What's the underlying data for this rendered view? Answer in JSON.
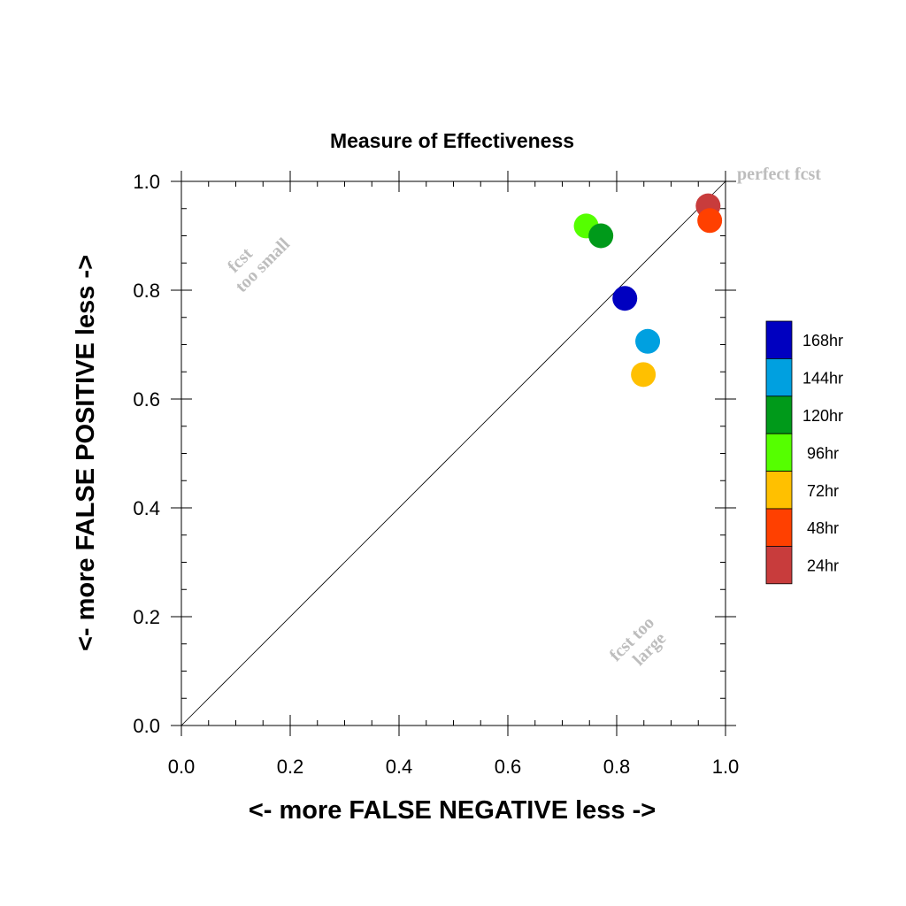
{
  "chart_data": {
    "type": "scatter",
    "title": "Measure of Effectiveness",
    "xlabel": "<- more   FALSE NEGATIVE   less ->",
    "ylabel": "<- more   FALSE POSITIVE   less ->",
    "xlim": [
      0.0,
      1.0
    ],
    "ylim": [
      0.0,
      1.0
    ],
    "x_ticks": [
      "0.0",
      "0.2",
      "0.4",
      "0.6",
      "0.8",
      "1.0"
    ],
    "y_ticks": [
      "0.0",
      "0.2",
      "0.4",
      "0.6",
      "0.8",
      "1.0"
    ],
    "grid": false,
    "diagonal_line": true,
    "annotations": {
      "perfect": "perfect fcst",
      "too_small_line1": "fcst",
      "too_small_line2": "too small",
      "too_large_line1": "fcst too",
      "too_large_line2": "large"
    },
    "legend_position": "right",
    "series": [
      {
        "name": "168hr",
        "color": "#0000c0",
        "x": 0.815,
        "y": 0.785
      },
      {
        "name": "144hr",
        "color": "#00a0e0",
        "x": 0.857,
        "y": 0.706
      },
      {
        "name": "120hr",
        "color": "#009a1a",
        "x": 0.771,
        "y": 0.9
      },
      {
        "name": "96hr",
        "color": "#55ff00",
        "x": 0.744,
        "y": 0.918
      },
      {
        "name": "72hr",
        "color": "#ffc000",
        "x": 0.849,
        "y": 0.645
      },
      {
        "name": "48hr",
        "color": "#ff4000",
        "x": 0.971,
        "y": 0.928
      },
      {
        "name": "24hr",
        "color": "#c83c3c",
        "x": 0.968,
        "y": 0.955
      }
    ]
  }
}
